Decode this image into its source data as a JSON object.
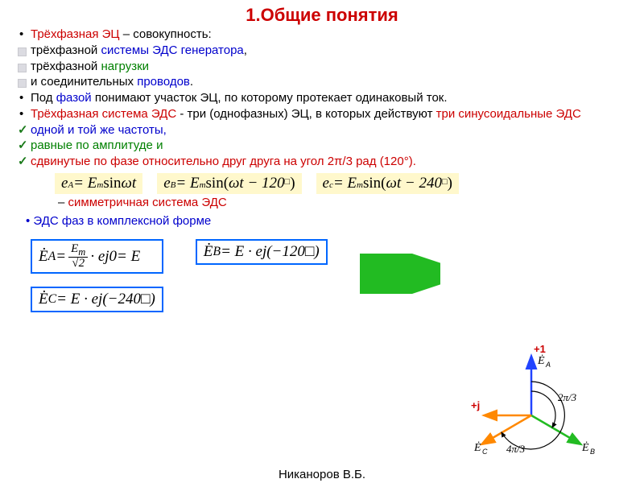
{
  "colors": {
    "title": "#cc0000",
    "red": "#cc0000",
    "blue": "#0000cc",
    "green": "#008000",
    "plain": "#000000",
    "formula_bg": "#fff8cc",
    "box_border": "#0066ff",
    "arrow_green": "#22bb22",
    "diag_blue": "#2244ff",
    "diag_green": "#22bb22",
    "diag_orange": "#ff8800"
  },
  "title": "1.Общие понятия",
  "lines": {
    "l1a": "Трёхфазная ЭЦ",
    "l1b": " – совокупность:",
    "l2a": "трёхфазной ",
    "l2b": "системы ЭДС генератора",
    "l2c": ",",
    "l3a": "трёхфазной ",
    "l3b": "нагрузки",
    "l4a": "и соединительных ",
    "l4b": "проводов",
    "l4c": ".",
    "l5a": "Под ",
    "l5b": "фазой",
    "l5c": " понимают участок ЭЦ, по которому протекает одинаковый ток.",
    "l6a": "Трёхфазная система ЭДС",
    "l6b": " - три (однофазных) ЭЦ, в которых действуют ",
    "l6c": "три синусоидальные ЭДС",
    "l7": "одной и той же частоты,",
    "l8": "равные по амплитуде и",
    "l9a": "сдвинутые по фазе относительно друг друга на угол ",
    "l9b": "2π/3 рад (120°).",
    "sym_dash": "– ",
    "sym": "симметричная система ЭДС",
    "complex_lead": "• ",
    "complex": "ЭДС фаз в комплексной форме"
  },
  "formulas": {
    "eA_html": "e<sub>A</sub> = E<sub>m</sub> <span class='roman'>sin</span> ωt",
    "eB_html": "e<sub>B</sub> = E<sub>m</sub> <span class='roman'>sin(</span>ωt − 120<span class='sup'>□</span><span class='roman'>)</span>",
    "eC_html": "e<sub>c</sub> = E<sub>m</sub> <span class='roman'>sin(</span>ωt − 240<span class='sup'>□</span><span class='roman'>)</span>",
    "EA_html": "<span class='dot-over'>E</span><sub>A</sub> = <span class='frac'><span class='num'>E<sub>m</sub></span><span class='den'>√2</span></span>· e<span class='sup'>j0</span> = E",
    "EB_html": "<span class='dot-over'>E</span><sub>B</sub> = E · e<span class='sup'>j(−120□)</span>",
    "EC_html": "<span class='dot-over'>E</span><sub>C</sub> = E · e<span class='sup'>j(−240□)</span>"
  },
  "diagram": {
    "plus1": "+1",
    "plusj": "+j",
    "EA": "Ė_A",
    "EB": "Ė_B",
    "EC": "Ė_C",
    "a1": "2π/3",
    "a2": "4π/3"
  },
  "author": "Никаноров В.Б."
}
